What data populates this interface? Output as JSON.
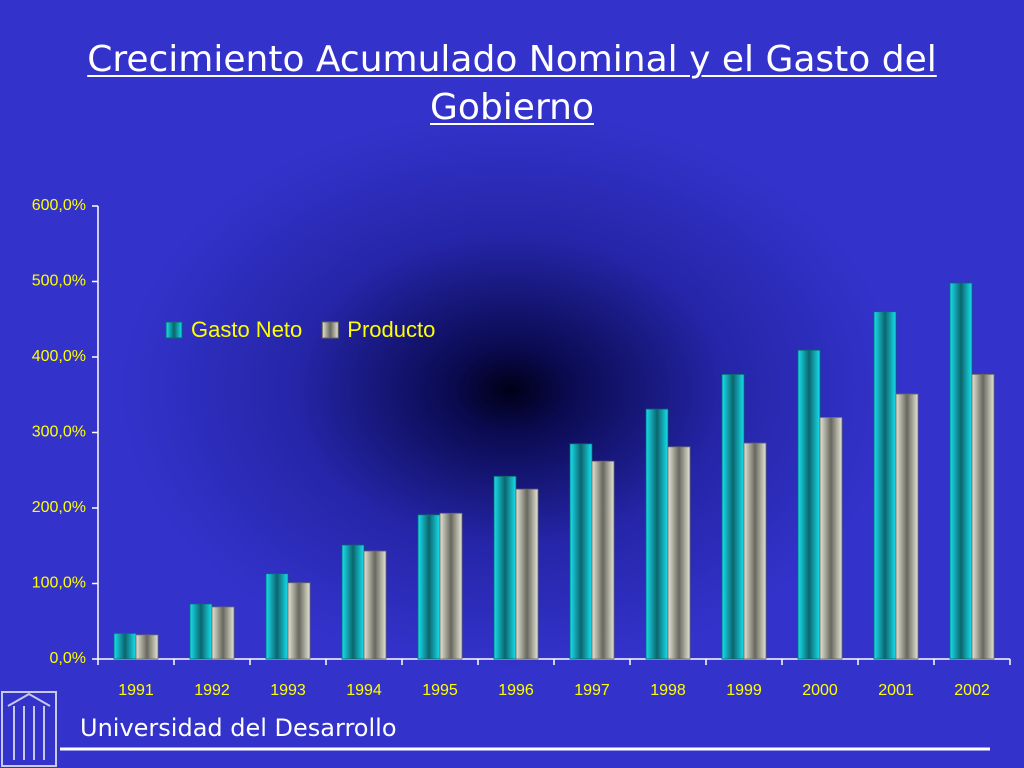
{
  "chart_data": {
    "type": "bar",
    "title": "Crecimiento Acumulado Nominal y el Gasto del Gobierno",
    "footer": "Universidad del Desarrollo",
    "categories": [
      "1991",
      "1992",
      "1993",
      "1994",
      "1995",
      "1996",
      "1997",
      "1998",
      "1999",
      "2000",
      "2001",
      "2002"
    ],
    "series": [
      {
        "name": "Gasto Neto",
        "color": "#18e0f0",
        "values": [
          34,
          73,
          113,
          151,
          191,
          242,
          285,
          331,
          377,
          409,
          460,
          498
        ]
      },
      {
        "name": "Producto",
        "color": "#e4e4d4",
        "values": [
          32,
          69,
          101,
          143,
          193,
          225,
          262,
          281,
          286,
          320,
          351,
          377
        ]
      }
    ],
    "ylim": [
      0,
      600
    ],
    "yticks": [
      {
        "value": 0,
        "label": "0,0%"
      },
      {
        "value": 100,
        "label": "100,0%"
      },
      {
        "value": 200,
        "label": "200,0%"
      },
      {
        "value": 300,
        "label": "300,0%"
      },
      {
        "value": 400,
        "label": "400,0%"
      },
      {
        "value": 500,
        "label": "500,0%"
      },
      {
        "value": 600,
        "label": "600,0%"
      }
    ],
    "grid": false,
    "legend_position": "top-left"
  }
}
